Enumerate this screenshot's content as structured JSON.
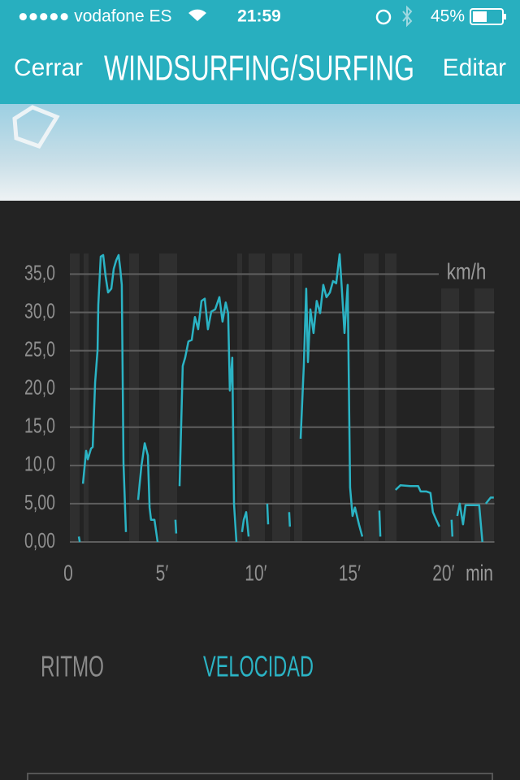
{
  "status_bar": {
    "carrier": "●●●●● vodafone ES",
    "time": "21:59",
    "battery": "45%"
  },
  "nav": {
    "left": "Cerrar",
    "title": "WINDSURFING/SURFING",
    "right": "Editar"
  },
  "chart_data": {
    "type": "line",
    "y_unit": "km/h",
    "x_unit": "min",
    "x": [
      0.65,
      0.7,
      null,
      0.87,
      1.04,
      1.13,
      1.3,
      1.39,
      1.52,
      1.65,
      1.69,
      1.82,
      1.95,
      2.08,
      2.21,
      2.38,
      2.51,
      2.64,
      2.77,
      2.86,
      2.94,
      3.03,
      3.16,
      null,
      3.81,
      3.98,
      4.16,
      4.33,
      4.42,
      4.5,
      4.68,
      4.85,
      null,
      5.8,
      5.84,
      null,
      6.02,
      6.19,
      6.32,
      6.49,
      6.67,
      6.84,
      7.01,
      7.19,
      7.36,
      7.53,
      7.71,
      7.92,
      8.14,
      8.31,
      8.48,
      8.61,
      8.7,
      8.83,
      8.92,
      9.05,
      null,
      9.35,
      9.44,
      9.57,
      9.7,
      null,
      10.69,
      10.74,
      null,
      11.86,
      11.9,
      null,
      12.47,
      12.64,
      12.77,
      12.86,
      12.99,
      13.16,
      13.33,
      13.51,
      13.68,
      13.85,
      14.03,
      14.2,
      14.37,
      14.55,
      14.68,
      14.81,
      14.98,
      15.11,
      15.24,
      15.37,
      15.58,
      15.76,
      null,
      16.67,
      16.72,
      null,
      17.53,
      17.79,
      18.31,
      18.74,
      18.87,
      19.18,
      19.39,
      19.52,
      19.7,
      19.87,
      null,
      20.52,
      20.56,
      null,
      20.82,
      20.95,
      21.13,
      21.26,
      21.99,
      22.16,
      null,
      22.34,
      22.6,
      22.77
    ],
    "series": [
      {
        "color": "#2bb3c4",
        "values": [
          0.7,
          0,
          null,
          7.6,
          11.9,
          10.8,
          12.2,
          12.4,
          20.9,
          25.1,
          31,
          37.3,
          37.5,
          34.7,
          32.6,
          33.1,
          35.7,
          36.8,
          37.5,
          35.7,
          33.6,
          10.3,
          1.3,
          null,
          5.5,
          9.8,
          12.9,
          11.3,
          4.5,
          2.9,
          2.9,
          0,
          null,
          2.9,
          1.1,
          null,
          7.3,
          23,
          24.1,
          26.2,
          26.4,
          29.4,
          27.8,
          31.5,
          31.8,
          27.8,
          30.1,
          30.4,
          32,
          28.8,
          31.3,
          29.9,
          19.8,
          24.1,
          5,
          0,
          null,
          1.3,
          2.9,
          3.9,
          0.7,
          null,
          5,
          2.3,
          null,
          3.9,
          2,
          null,
          13.5,
          23,
          33.1,
          23.5,
          30.4,
          27.3,
          31.5,
          29.9,
          33.6,
          32,
          32.6,
          34.1,
          33.8,
          37.6,
          32.6,
          27.3,
          33.6,
          7.1,
          3.4,
          4.5,
          2.3,
          0.7,
          null,
          4.1,
          0.7,
          null,
          6.8,
          7.4,
          7.3,
          7.3,
          6.6,
          6.6,
          6.4,
          3.9,
          2.9,
          2,
          null,
          2.9,
          0.7,
          null,
          3.4,
          5,
          2.3,
          4.8,
          4.8,
          0,
          null,
          5,
          5.8,
          5.8
        ]
      }
    ],
    "xlim": [
      0,
      22.8
    ],
    "ylim": [
      0,
      37.7
    ],
    "xticks": [
      0,
      {
        "value": 5,
        "label": "5′"
      },
      {
        "value": 10,
        "label": "10′"
      },
      {
        "value": 15,
        "label": "15′"
      },
      {
        "value": 20,
        "label": "20′"
      }
    ],
    "yticks": [
      {
        "value": 0,
        "label": "0,00"
      },
      {
        "value": 5,
        "label": "5,00"
      },
      {
        "value": 10,
        "label": "10,0"
      },
      {
        "value": 15,
        "label": "15,0"
      },
      {
        "value": 20,
        "label": "20,0"
      },
      {
        "value": 25,
        "label": "25,0"
      },
      {
        "value": 30,
        "label": "30,0"
      },
      {
        "value": 35,
        "label": "35,0"
      }
    ],
    "grid": true
  },
  "tabs": [
    "RITMO",
    "VELOCIDAD"
  ]
}
